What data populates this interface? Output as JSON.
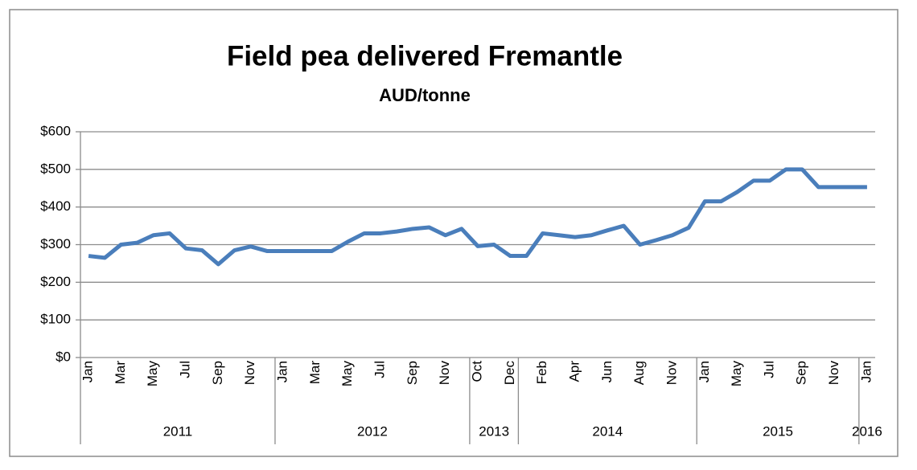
{
  "chart_data": {
    "type": "line",
    "title": "Field pea delivered Fremantle",
    "subtitle": "AUD/tonne",
    "categories": [
      "Jan",
      null,
      "Mar",
      null,
      "May",
      null,
      "Jul",
      null,
      "Sep",
      null,
      "Nov",
      null,
      "Jan",
      null,
      "Mar",
      null,
      "May",
      null,
      "Jul",
      null,
      "Sep",
      null,
      "Nov",
      null,
      "Oct",
      null,
      "Dec",
      null,
      "Feb",
      null,
      "Apr",
      null,
      "Jun",
      null,
      "Aug",
      null,
      "Nov",
      null,
      "Jan",
      null,
      "May",
      null,
      "Jul",
      null,
      "Sep",
      null,
      "Nov",
      null,
      "Jan"
    ],
    "year_groups": [
      {
        "label": "2011",
        "span": 12
      },
      {
        "label": "2012",
        "span": 12
      },
      {
        "label": "2013",
        "span": 3
      },
      {
        "label": "2014",
        "span": 11
      },
      {
        "label": "2015",
        "span": 10
      },
      {
        "label": "2016",
        "span": 1
      }
    ],
    "series": [
      {
        "name": "Field pea",
        "color": "#4a7ebb",
        "values": [
          270,
          265,
          300,
          305,
          325,
          330,
          290,
          285,
          248,
          285,
          295,
          283,
          283,
          283,
          283,
          283,
          308,
          330,
          330,
          335,
          342,
          346,
          325,
          342,
          296,
          300,
          270,
          270,
          330,
          325,
          320,
          325,
          338,
          350,
          300,
          312,
          325,
          345,
          415,
          415,
          440,
          470,
          470,
          500,
          500,
          453,
          453,
          453,
          453
        ]
      }
    ],
    "ylim": [
      0,
      600
    ],
    "yticks": [
      {
        "value": 0,
        "label": "$0"
      },
      {
        "value": 100,
        "label": "$100"
      },
      {
        "value": 200,
        "label": "$200"
      },
      {
        "value": 300,
        "label": "$300"
      },
      {
        "value": 400,
        "label": "$400"
      },
      {
        "value": 500,
        "label": "$500"
      },
      {
        "value": 600,
        "label": "$600"
      }
    ],
    "grid": true
  }
}
